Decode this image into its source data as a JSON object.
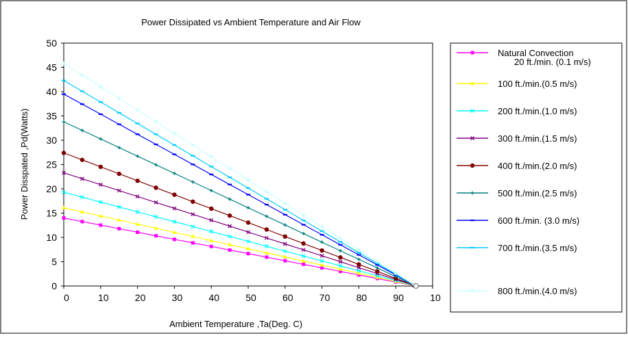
{
  "chart_data": {
    "type": "line",
    "title": "Power Dissipated vs Ambient Temperature and Air Flow",
    "xlabel": "Ambient Temperature ,Ta(Deg. C)",
    "ylabel": "Power Disspated ,Pd(Watts)",
    "xlim": [
      0,
      100
    ],
    "ylim": [
      0,
      50
    ],
    "x_ticks": [
      "0",
      "10",
      "20",
      "30",
      "40",
      "50",
      "60",
      "70",
      "80",
      "90",
      "10"
    ],
    "y_ticks": [
      "0",
      "5",
      "10",
      "15",
      "20",
      "25",
      "30",
      "35",
      "40",
      "45",
      "50"
    ],
    "grid": false,
    "legend_position": "right",
    "end_x": 95.5,
    "series": [
      {
        "name": "Natural Convection",
        "name_line2": "20 ft./min. (0.1 m/s)",
        "y0": 14.0,
        "color": "#ff00ff",
        "marker": "square"
      },
      {
        "name": "100 ft./min.(0.5 m/s)",
        "y0": 16.1,
        "color": "#ffff00",
        "marker": "triangle"
      },
      {
        "name": "200 ft./min.(1.0 m/s)",
        "y0": 19.3,
        "color": "#00ffff",
        "marker": "x"
      },
      {
        "name": "300 ft./min.(1.5 m/s)",
        "y0": 23.3,
        "color": "#800080",
        "marker": "x"
      },
      {
        "name": "400 ft./min.(2.0 m/s)",
        "y0": 27.4,
        "color": "#800000",
        "marker": "circle"
      },
      {
        "name": "500 ft./min.(2.5 m/s)",
        "y0": 33.8,
        "color": "#008080",
        "marker": "plus"
      },
      {
        "name": "600 ft./min. (3.0 m/s)",
        "y0": 39.5,
        "color": "#0000ff",
        "marker": "dash"
      },
      {
        "name": "700 ft./min.(3.5 m/s)",
        "y0": 42.3,
        "color": "#00ccff",
        "marker": "dash"
      },
      {
        "name": "800 ft./min.(4.0 m/s)",
        "y0": 45.8,
        "color": "#ccffff",
        "marker": "diamond"
      }
    ]
  }
}
